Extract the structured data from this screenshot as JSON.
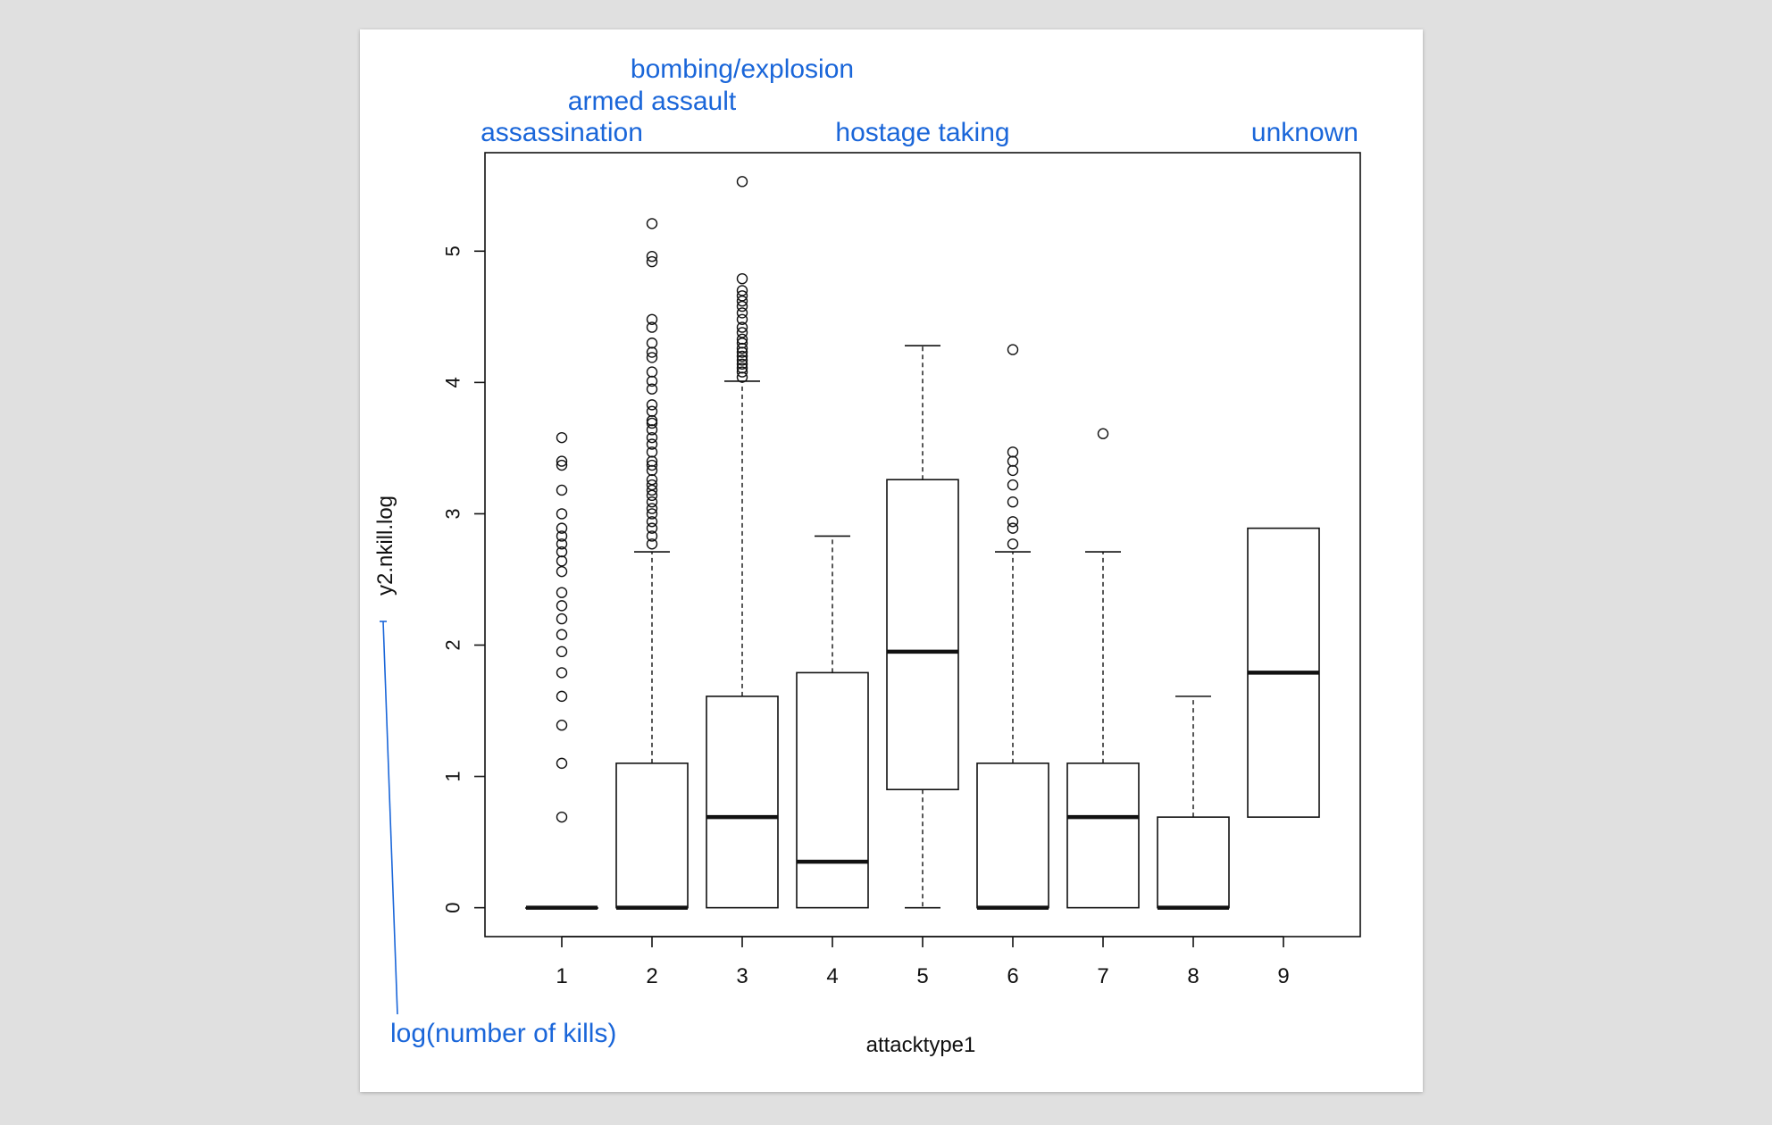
{
  "annotation_color": "#1a66d9",
  "chart_data": {
    "type": "boxplot",
    "xlabel": "attacktype1",
    "ylabel": "y2.nkill.log",
    "ylim": [
      -0.22,
      5.75
    ],
    "yticks": [
      0,
      1,
      2,
      3,
      4,
      5
    ],
    "categories": [
      "1",
      "2",
      "3",
      "4",
      "5",
      "6",
      "7",
      "8",
      "9"
    ],
    "boxes": [
      {
        "category": "1",
        "q1": 0,
        "median": 0,
        "q3": 0,
        "whisker_low": 0,
        "whisker_high": 0,
        "outliers": [
          0.69,
          1.1,
          1.39,
          1.61,
          1.79,
          1.95,
          2.08,
          2.2,
          2.3,
          2.4,
          2.56,
          2.64,
          2.71,
          2.77,
          2.83,
          2.89,
          3.0,
          3.18,
          3.37,
          3.4,
          3.58
        ]
      },
      {
        "category": "2",
        "q1": 0,
        "median": 0,
        "q3": 1.1,
        "whisker_low": 0,
        "whisker_high": 2.71,
        "outliers": [
          2.77,
          2.83,
          2.89,
          2.94,
          3.0,
          3.04,
          3.09,
          3.14,
          3.18,
          3.22,
          3.26,
          3.33,
          3.37,
          3.4,
          3.47,
          3.53,
          3.58,
          3.64,
          3.69,
          3.71,
          3.78,
          3.83,
          3.95,
          4.01,
          4.08,
          4.19,
          4.23,
          4.3,
          4.42,
          4.48,
          4.92,
          4.96,
          5.21
        ]
      },
      {
        "category": "3",
        "q1": 0,
        "median": 0.69,
        "q3": 1.61,
        "whisker_low": 0,
        "whisker_high": 4.01,
        "outliers": [
          4.04,
          4.08,
          4.11,
          4.14,
          4.17,
          4.2,
          4.23,
          4.26,
          4.3,
          4.33,
          4.38,
          4.42,
          4.48,
          4.53,
          4.58,
          4.62,
          4.66,
          4.7,
          4.79,
          5.53
        ]
      },
      {
        "category": "4",
        "q1": 0,
        "median": 0.35,
        "q3": 1.79,
        "whisker_low": 0,
        "whisker_high": 2.83,
        "outliers": []
      },
      {
        "category": "5",
        "q1": 0.9,
        "median": 1.95,
        "q3": 3.26,
        "whisker_low": 0,
        "whisker_high": 4.28,
        "outliers": []
      },
      {
        "category": "6",
        "q1": 0,
        "median": 0,
        "q3": 1.1,
        "whisker_low": 0,
        "whisker_high": 2.71,
        "outliers": [
          2.77,
          2.89,
          2.94,
          3.09,
          3.22,
          3.33,
          3.4,
          3.47,
          4.25
        ]
      },
      {
        "category": "7",
        "q1": 0,
        "median": 0.69,
        "q3": 1.1,
        "whisker_low": 0,
        "whisker_high": 2.71,
        "outliers": [
          3.61
        ]
      },
      {
        "category": "8",
        "q1": 0,
        "median": 0,
        "q3": 0.69,
        "whisker_low": 0,
        "whisker_high": 1.61,
        "outliers": []
      },
      {
        "category": "9",
        "q1": 0.69,
        "median": 1.79,
        "q3": 2.89,
        "whisker_low": 0.69,
        "whisker_high": 2.89,
        "outliers": []
      }
    ],
    "category_annotations": [
      {
        "category": "1",
        "text": "assassination"
      },
      {
        "category": "2",
        "text": "armed assault"
      },
      {
        "category": "3",
        "text": "bombing/explosion"
      },
      {
        "category": "5",
        "text": "hostage taking"
      },
      {
        "category": "9",
        "text": "unknown"
      }
    ],
    "ylabel_annotation": "log(number of kills)"
  }
}
